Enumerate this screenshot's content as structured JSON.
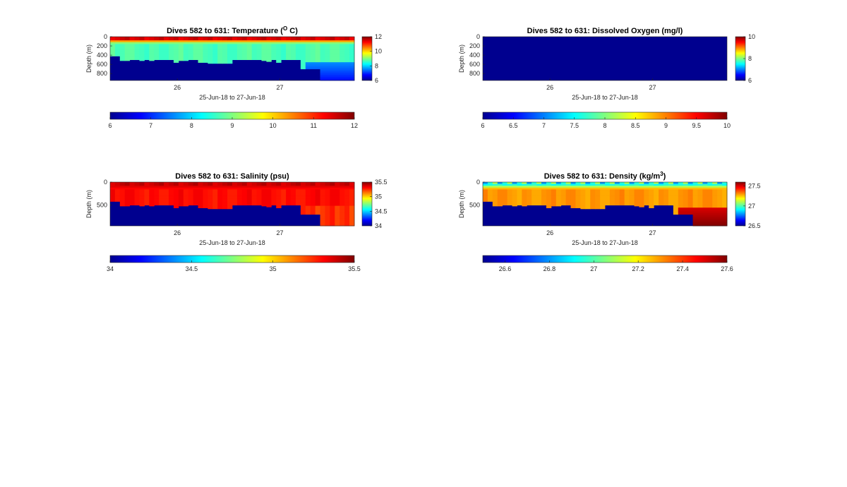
{
  "figure": {
    "colormap": "jet",
    "no_data_color": "#00008f"
  },
  "chart_data": [
    {
      "type": "heatmap",
      "id": "temp",
      "title": "Dives 582 to 631: Temperature (",
      "title_sup": "O",
      "title_end": " C)",
      "xlabel": "25-Jun-18 to 27-Jun-18",
      "ylabel": "Depth (m)",
      "x_ticks": [
        "26",
        "27"
      ],
      "y_ticks": [
        "0",
        "200",
        "400",
        "600",
        "800"
      ],
      "y_tick_values": [
        0,
        200,
        400,
        600,
        800
      ],
      "ylim": [
        0,
        950
      ],
      "n_dives": 50,
      "clim": [
        6,
        12
      ],
      "colorbar_ticks": [
        "6",
        "8",
        "10",
        "12"
      ],
      "colorbar_tick_values": [
        6,
        8,
        10,
        12
      ],
      "h_colorbar_ticks": [
        "6",
        "7",
        "8",
        "9",
        "10",
        "11",
        "12"
      ],
      "h_colorbar_tick_values": [
        6,
        7,
        8,
        9,
        10,
        11,
        12
      ],
      "surface_value": 11.5,
      "body_value": 8.7,
      "deep_value": 7.6,
      "max_depth_per_dive": [
        420,
        420,
        520,
        520,
        500,
        500,
        520,
        500,
        520,
        500,
        500,
        500,
        500,
        560,
        520,
        520,
        500,
        500,
        560,
        560,
        580,
        580,
        580,
        580,
        580,
        500,
        500,
        500,
        500,
        500,
        500,
        520,
        540,
        500,
        560,
        500,
        500,
        500,
        500,
        700,
        700,
        700,
        700,
        950,
        950,
        950,
        950,
        950,
        950,
        950
      ]
    },
    {
      "type": "heatmap",
      "id": "oxy",
      "title": "Dives 582 to 631: Dissolved Oxygen (mg/l)",
      "title_sup": "",
      "title_end": "",
      "xlabel": "25-Jun-18 to 27-Jun-18",
      "ylabel": "Depth (m)",
      "x_ticks": [
        "26",
        "27"
      ],
      "y_ticks": [
        "0",
        "200",
        "400",
        "600",
        "800"
      ],
      "y_tick_values": [
        0,
        200,
        400,
        600,
        800
      ],
      "ylim": [
        0,
        950
      ],
      "n_dives": 50,
      "clim": [
        6,
        10
      ],
      "colorbar_ticks": [
        "6",
        "8",
        "10"
      ],
      "colorbar_tick_values": [
        6,
        8,
        10
      ],
      "h_colorbar_ticks": [
        "6",
        "6.5",
        "7",
        "7.5",
        "8",
        "8.5",
        "9",
        "9.5",
        "10"
      ],
      "h_colorbar_tick_values": [
        6,
        6.5,
        7,
        7.5,
        8,
        8.5,
        9,
        9.5,
        10
      ],
      "all_missing": true
    },
    {
      "type": "heatmap",
      "id": "sal",
      "title": "Dives 582 to 631: Salinity (psu)",
      "title_sup": "",
      "title_end": "",
      "xlabel": "25-Jun-18 to 27-Jun-18",
      "ylabel": "Depth (m)",
      "x_ticks": [
        "26",
        "27"
      ],
      "y_ticks": [
        "0",
        "500"
      ],
      "y_tick_values": [
        0,
        500
      ],
      "ylim": [
        0,
        950
      ],
      "n_dives": 50,
      "clim": [
        34,
        35.5
      ],
      "colorbar_ticks": [
        "34",
        "34.5",
        "35",
        "35.5"
      ],
      "colorbar_tick_values": [
        34,
        34.5,
        35,
        35.5
      ],
      "h_colorbar_ticks": [
        "34",
        "34.5",
        "35",
        "35.5"
      ],
      "h_colorbar_tick_values": [
        34,
        34.5,
        35,
        35.5
      ],
      "surface_value": 35.4,
      "body_value": 35.3,
      "deep_value": 35.25,
      "max_depth_per_dive": [
        420,
        420,
        520,
        520,
        500,
        500,
        520,
        500,
        520,
        500,
        500,
        500,
        500,
        560,
        520,
        520,
        500,
        500,
        560,
        560,
        580,
        580,
        580,
        580,
        580,
        500,
        500,
        500,
        500,
        500,
        500,
        520,
        540,
        500,
        560,
        500,
        500,
        500,
        500,
        700,
        700,
        700,
        700,
        950,
        950,
        950,
        950,
        950,
        950,
        950
      ]
    },
    {
      "type": "heatmap",
      "id": "dens",
      "title": "Dives 582 to 631: Density (kg/m",
      "title_sup": "3",
      "title_end": ")",
      "xlabel": "25-Jun-18 to 27-Jun-18",
      "ylabel": "Depth (m)",
      "x_ticks": [
        "26",
        "27"
      ],
      "y_ticks": [
        "0",
        "500"
      ],
      "y_tick_values": [
        0,
        500
      ],
      "ylim": [
        0,
        950
      ],
      "n_dives": 50,
      "clim": [
        26.5,
        27.6
      ],
      "colorbar_ticks": [
        "26.5",
        "27",
        "27.5"
      ],
      "colorbar_tick_values": [
        26.5,
        27,
        27.5
      ],
      "h_colorbar_ticks": [
        "26.6",
        "26.8",
        "27",
        "27.2",
        "27.4",
        "27.6"
      ],
      "h_colorbar_tick_values": [
        26.6,
        26.8,
        27,
        27.2,
        27.4,
        27.6
      ],
      "surface_value": 26.95,
      "body_value": 27.3,
      "deep_value": 27.5,
      "max_depth_per_dive": [
        420,
        420,
        520,
        520,
        500,
        500,
        520,
        500,
        520,
        500,
        500,
        500,
        500,
        560,
        520,
        520,
        500,
        500,
        560,
        560,
        580,
        580,
        580,
        580,
        580,
        500,
        500,
        500,
        500,
        500,
        500,
        520,
        540,
        500,
        560,
        500,
        500,
        500,
        500,
        700,
        700,
        700,
        700,
        950,
        950,
        950,
        950,
        950,
        950,
        950
      ]
    }
  ]
}
